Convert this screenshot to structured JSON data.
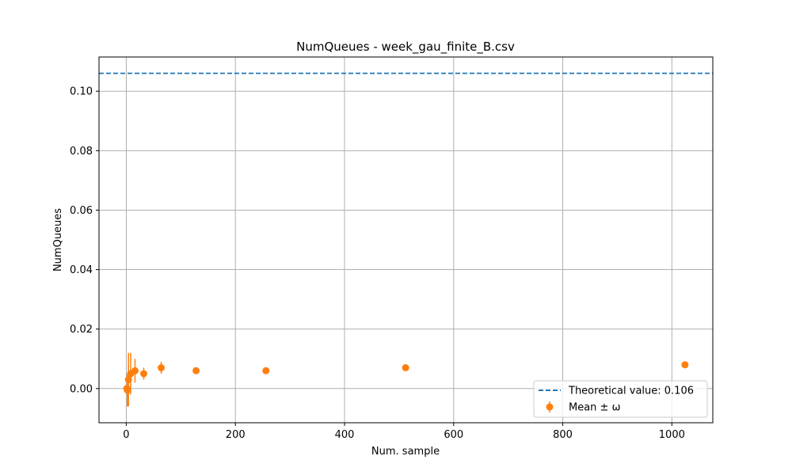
{
  "chart_data": {
    "type": "scatter",
    "title": "NumQueues - week_gau_finite_B.csv",
    "xlabel": "Num. sample",
    "ylabel": "NumQueues",
    "xlim": [
      -50,
      1075
    ],
    "ylim": [
      -0.0115,
      0.1115
    ],
    "xticks": [
      0,
      200,
      400,
      600,
      800,
      1000
    ],
    "yticks": [
      0.0,
      0.02,
      0.04,
      0.06,
      0.08,
      0.1
    ],
    "xtick_labels": [
      "0",
      "200",
      "400",
      "600",
      "800",
      "1000"
    ],
    "ytick_labels": [
      "0.00",
      "0.02",
      "0.04",
      "0.06",
      "0.08",
      "0.10"
    ],
    "grid": true,
    "legend_position": "lower-right",
    "theoretical": {
      "label": "Theoretical value: 0.106",
      "value": 0.106,
      "color": "#1f77b4",
      "style": "dashed"
    },
    "series": [
      {
        "name": "Mean ± ω",
        "color": "#ff7f0e",
        "x": [
          1,
          2,
          4,
          8,
          16,
          32,
          64,
          128,
          256,
          512,
          1024
        ],
        "y": [
          0.0,
          -0.0005,
          0.003,
          0.005,
          0.006,
          0.005,
          0.007,
          0.006,
          0.006,
          0.007,
          0.008
        ],
        "err": [
          0.0,
          0.0055,
          0.009,
          0.007,
          0.004,
          0.002,
          0.002,
          0.0005,
          0.0005,
          0.0003,
          0.0003
        ]
      }
    ]
  }
}
